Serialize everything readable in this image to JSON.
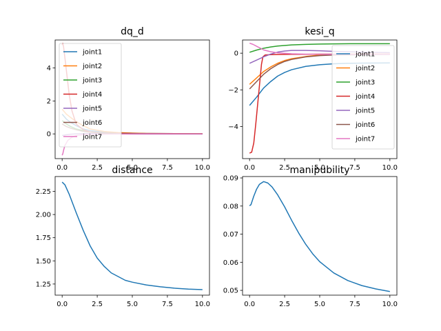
{
  "chart_data": [
    {
      "type": "line",
      "title": "dq_d",
      "xlabel": "",
      "ylabel": "",
      "xlim": [
        -0.5,
        10.5
      ],
      "ylim": [
        -1.5,
        5.7
      ],
      "xticks": [
        "0.0",
        "2.5",
        "5.0",
        "7.5",
        "10.0"
      ],
      "xtick_values": [
        0,
        2.5,
        5,
        7.5,
        10
      ],
      "yticks": [
        "0",
        "2",
        "4"
      ],
      "ytick_values": [
        0,
        2,
        4
      ],
      "legend": "upper-left",
      "series": [
        {
          "name": "joint1",
          "color": "#1f77b4",
          "x": [
            0,
            0.1,
            0.3,
            0.6,
            1,
            1.5,
            2,
            3,
            4,
            5,
            6,
            8,
            10
          ],
          "values": [
            1.2,
            1.1,
            0.9,
            0.7,
            0.5,
            0.3,
            0.2,
            0.1,
            0.06,
            0.04,
            0.03,
            0.02,
            0.01
          ]
        },
        {
          "name": "joint2",
          "color": "#ff7f0e",
          "x": [
            0,
            0.1,
            0.3,
            0.6,
            1,
            1.5,
            2,
            3,
            4,
            5,
            6,
            8,
            10
          ],
          "values": [
            1.5,
            1.4,
            1.2,
            1.0,
            0.75,
            0.5,
            0.3,
            0.15,
            0.08,
            0.05,
            0.03,
            0.02,
            0.01
          ]
        },
        {
          "name": "joint3",
          "color": "#2ca02c",
          "x": [
            0,
            0.1,
            0.3,
            0.6,
            1,
            1.5,
            2,
            3,
            4,
            5,
            6,
            8,
            10
          ],
          "values": [
            0.8,
            0.75,
            0.6,
            0.45,
            0.3,
            0.2,
            0.12,
            0.06,
            0.04,
            0.03,
            0.02,
            0.01,
            0.0
          ]
        },
        {
          "name": "joint4",
          "color": "#d62728",
          "x": [
            0,
            0.05,
            0.1,
            0.2,
            0.35,
            0.5,
            0.7,
            1,
            1.5,
            2,
            3,
            4,
            5,
            6,
            8,
            10
          ],
          "values": [
            5.4,
            5.5,
            5.3,
            4.6,
            3.5,
            2.4,
            1.4,
            0.6,
            0.25,
            0.12,
            0.06,
            0.04,
            0.03,
            0.02,
            0.01,
            0.0
          ]
        },
        {
          "name": "joint5",
          "color": "#9467bd",
          "x": [
            0,
            0.1,
            0.3,
            0.6,
            1,
            1.5,
            2,
            3,
            4,
            5,
            6,
            8,
            10
          ],
          "values": [
            -0.1,
            -0.08,
            -0.05,
            -0.02,
            0.0,
            0.02,
            0.02,
            0.01,
            0.0,
            -0.01,
            -0.01,
            -0.01,
            -0.01
          ]
        },
        {
          "name": "joint6",
          "color": "#8c564b",
          "x": [
            0,
            0.1,
            0.3,
            0.6,
            1,
            1.5,
            2,
            3,
            4,
            5,
            6,
            8,
            10
          ],
          "values": [
            0.6,
            0.55,
            0.45,
            0.35,
            0.25,
            0.15,
            0.1,
            0.05,
            0.03,
            0.02,
            0.01,
            0.0,
            0.0
          ]
        },
        {
          "name": "joint7",
          "color": "#e377c2",
          "x": [
            0,
            0.05,
            0.1,
            0.2,
            0.4,
            0.7,
            1,
            1.5,
            2,
            3,
            4,
            6,
            8,
            10
          ],
          "values": [
            -1.3,
            -1.2,
            -1.0,
            -0.7,
            -0.4,
            -0.2,
            -0.1,
            -0.05,
            -0.03,
            -0.02,
            -0.01,
            0.0,
            0.0,
            0.0
          ]
        }
      ]
    },
    {
      "type": "line",
      "title": "kesi_q",
      "xlabel": "",
      "ylabel": "",
      "xlim": [
        -0.5,
        10.5
      ],
      "ylim": [
        -5.75,
        0.72
      ],
      "xticks": [
        "0.0",
        "2.5",
        "5.0",
        "7.5",
        "10.0"
      ],
      "xtick_values": [
        0,
        2.5,
        5,
        7.5,
        10
      ],
      "yticks": [
        "−4",
        "−2",
        "0"
      ],
      "ytick_values": [
        -4,
        -2,
        0
      ],
      "legend": "right",
      "series": [
        {
          "name": "joint1",
          "color": "#1f77b4",
          "x": [
            0,
            0.5,
            1,
            1.5,
            2,
            2.5,
            3,
            4,
            5,
            6,
            7,
            8,
            10
          ],
          "values": [
            -2.85,
            -2.4,
            -1.9,
            -1.55,
            -1.25,
            -1.05,
            -0.9,
            -0.72,
            -0.63,
            -0.58,
            -0.55,
            -0.54,
            -0.53
          ]
        },
        {
          "name": "joint2",
          "color": "#ff7f0e",
          "x": [
            0,
            0.5,
            1,
            1.5,
            2,
            2.5,
            3,
            4,
            5,
            6,
            7,
            8,
            10
          ],
          "values": [
            -1.7,
            -1.35,
            -1.0,
            -0.75,
            -0.55,
            -0.4,
            -0.3,
            -0.18,
            -0.1,
            -0.07,
            -0.05,
            -0.05,
            -0.05
          ]
        },
        {
          "name": "joint3",
          "color": "#2ca02c",
          "x": [
            0,
            0.5,
            1,
            1.5,
            2,
            3,
            4,
            5,
            6,
            8,
            10
          ],
          "values": [
            0.05,
            0.17,
            0.27,
            0.34,
            0.39,
            0.45,
            0.48,
            0.5,
            0.51,
            0.52,
            0.52
          ]
        },
        {
          "name": "joint4",
          "color": "#d62728",
          "x": [
            0,
            0.15,
            0.3,
            0.45,
            0.6,
            0.75,
            0.85,
            0.95,
            1.1,
            1.5,
            2,
            3,
            4,
            5,
            6,
            8,
            10
          ],
          "values": [
            -5.45,
            -5.4,
            -4.9,
            -3.8,
            -2.6,
            -1.4,
            -0.6,
            -0.2,
            -0.1,
            -0.08,
            -0.07,
            -0.06,
            -0.06,
            -0.05,
            -0.05,
            -0.05,
            -0.05
          ]
        },
        {
          "name": "joint5",
          "color": "#9467bd",
          "x": [
            0,
            0.5,
            1,
            1.5,
            2,
            2.5,
            3,
            4,
            5,
            6,
            8,
            10
          ],
          "values": [
            -0.55,
            -0.38,
            -0.2,
            -0.05,
            0.06,
            0.12,
            0.15,
            0.15,
            0.13,
            0.1,
            0.06,
            0.03
          ]
        },
        {
          "name": "joint6",
          "color": "#8c564b",
          "x": [
            0,
            0.5,
            1,
            1.5,
            2,
            2.5,
            3,
            4,
            5,
            6,
            8,
            10
          ],
          "values": [
            -1.95,
            -1.55,
            -1.15,
            -0.85,
            -0.62,
            -0.45,
            -0.34,
            -0.2,
            -0.13,
            -0.1,
            -0.08,
            -0.07
          ]
        },
        {
          "name": "joint7",
          "color": "#e377c2",
          "x": [
            0,
            0.25,
            0.5,
            0.75,
            1,
            1.5,
            2,
            3,
            4,
            6,
            8,
            10
          ],
          "values": [
            0.55,
            0.48,
            0.38,
            0.28,
            0.18,
            0.08,
            0.02,
            -0.03,
            -0.05,
            -0.06,
            -0.06,
            -0.06
          ]
        }
      ]
    },
    {
      "type": "line",
      "title": "distance",
      "xlabel": "",
      "ylabel": "",
      "xlim": [
        -0.5,
        10.5
      ],
      "ylim": [
        1.13,
        2.41
      ],
      "xticks": [
        "0.0",
        "2.5",
        "5.0",
        "7.5",
        "10.0"
      ],
      "xtick_values": [
        0,
        2.5,
        5,
        7.5,
        10
      ],
      "yticks": [
        "1.25",
        "1.50",
        "1.75",
        "2.00",
        "2.25"
      ],
      "ytick_values": [
        1.25,
        1.5,
        1.75,
        2.0,
        2.25
      ],
      "series": [
        {
          "name": "",
          "color": "#1f77b4",
          "x": [
            0,
            0.2,
            0.5,
            1,
            1.5,
            2,
            2.5,
            3,
            3.5,
            4,
            4.5,
            5,
            6,
            7,
            8,
            9,
            10
          ],
          "values": [
            2.35,
            2.32,
            2.22,
            2.02,
            1.83,
            1.66,
            1.53,
            1.44,
            1.37,
            1.33,
            1.29,
            1.27,
            1.24,
            1.22,
            1.205,
            1.195,
            1.19
          ]
        }
      ]
    },
    {
      "type": "line",
      "title": "manipubility",
      "xlabel": "",
      "ylabel": "",
      "xlim": [
        -0.5,
        10.5
      ],
      "ylim": [
        0.0483,
        0.0905
      ],
      "xticks": [
        "0.0",
        "2.5",
        "5.0",
        "7.5",
        "10.0"
      ],
      "xtick_values": [
        0,
        2.5,
        5,
        7.5,
        10
      ],
      "yticks": [
        "0.05",
        "0.06",
        "0.07",
        "0.08",
        "0.09"
      ],
      "ytick_values": [
        0.05,
        0.06,
        0.07,
        0.08,
        0.09
      ],
      "series": [
        {
          "name": "",
          "color": "#1f77b4",
          "x": [
            0,
            0.1,
            0.3,
            0.5,
            0.7,
            1,
            1.3,
            1.6,
            2,
            2.5,
            3,
            3.5,
            4,
            4.5,
            5,
            6,
            7,
            8,
            9,
            10
          ],
          "values": [
            0.0801,
            0.0805,
            0.0835,
            0.086,
            0.0877,
            0.0887,
            0.0882,
            0.0868,
            0.084,
            0.0797,
            0.0749,
            0.0704,
            0.0664,
            0.063,
            0.0602,
            0.0562,
            0.0535,
            0.0517,
            0.0505,
            0.0496
          ]
        }
      ]
    }
  ]
}
